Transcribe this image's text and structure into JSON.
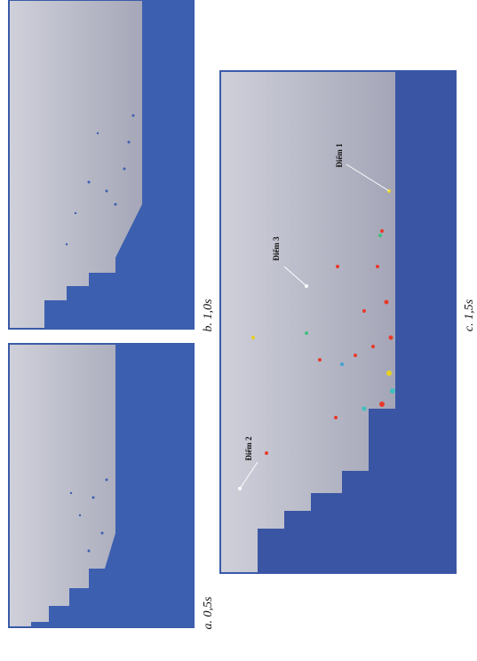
{
  "panels": [
    {
      "caption": "a. 0,5s"
    },
    {
      "caption": "b. 1,0s"
    },
    {
      "caption": "c. 1,5s"
    }
  ],
  "points": [
    {
      "label": "Điểm 1"
    },
    {
      "label": "Điểm 2"
    },
    {
      "label": "Điểm 3"
    }
  ]
}
